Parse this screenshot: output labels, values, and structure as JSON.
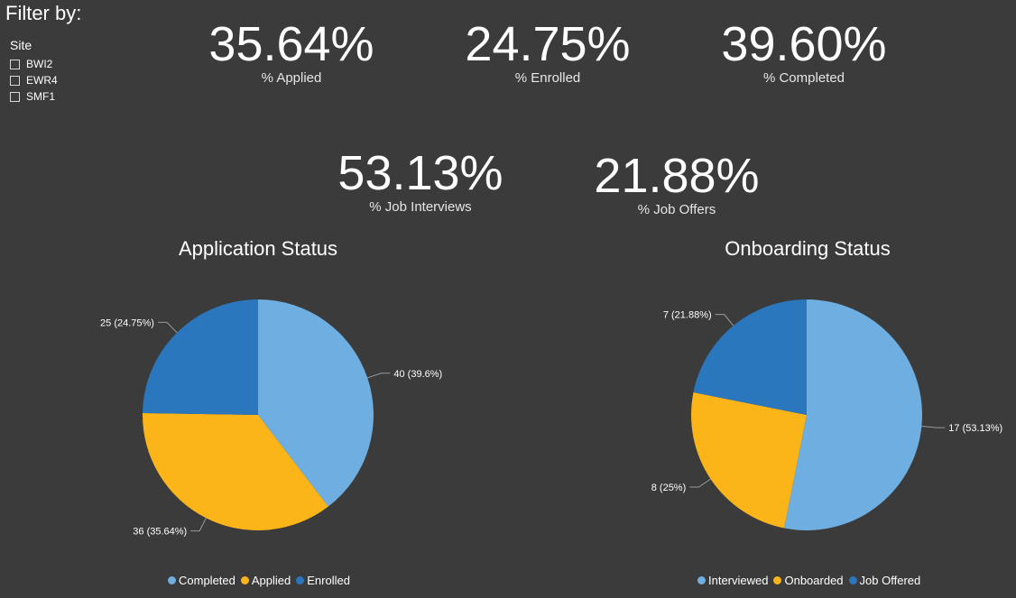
{
  "filter": {
    "title": "Filter by:",
    "site_label": "Site",
    "sites": [
      "BWI2",
      "EWR4",
      "SMF1"
    ]
  },
  "kpis": {
    "applied": {
      "value": "35.64%",
      "label": "% Applied"
    },
    "enrolled": {
      "value": "24.75%",
      "label": "% Enrolled"
    },
    "completed": {
      "value": "39.60%",
      "label": "% Completed"
    },
    "interviews": {
      "value": "53.13%",
      "label": "% Job Interviews"
    },
    "offers": {
      "value": "21.88%",
      "label": "% Job Offers"
    }
  },
  "colors": {
    "background": "#3b3b3b",
    "light_blue": "#6faee0",
    "yellow": "#fbb519",
    "dark_blue": "#2a77bd"
  },
  "chart_data": [
    {
      "type": "pie",
      "title": "Application Status",
      "categories": [
        "Completed",
        "Applied",
        "Enrolled"
      ],
      "values": [
        40,
        36,
        25
      ],
      "data_labels": [
        "40 (39.6%)",
        "36 (35.64%)",
        "25 (24.75%)"
      ],
      "colors": [
        "#6faee0",
        "#fbb519",
        "#2a77bd"
      ],
      "legend_position": "bottom"
    },
    {
      "type": "pie",
      "title": "Onboarding Status",
      "categories": [
        "Interviewed",
        "Onboarded",
        "Job Offered"
      ],
      "values": [
        17,
        8,
        7
      ],
      "data_labels": [
        "17 (53.13%)",
        "8 (25%)",
        "7 (21.88%)"
      ],
      "colors": [
        "#6faee0",
        "#fbb519",
        "#2a77bd"
      ],
      "legend_position": "bottom"
    }
  ]
}
